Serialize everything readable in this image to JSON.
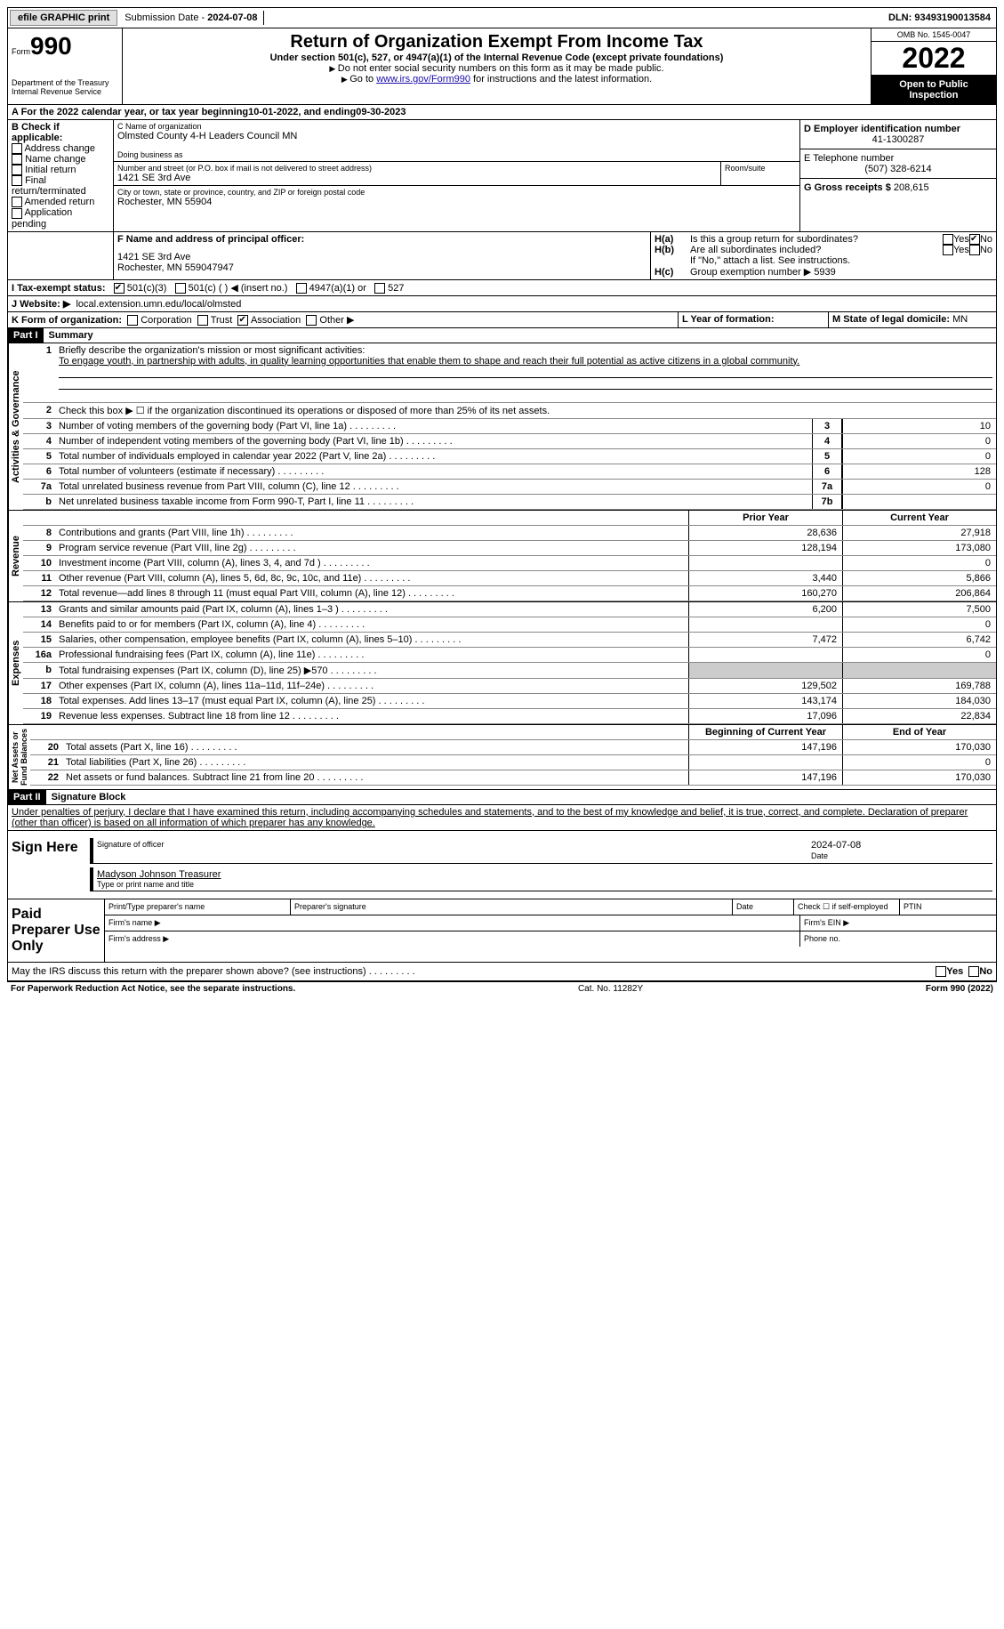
{
  "topbar": {
    "efile": "efile GRAPHIC print",
    "submission_label": "Submission Date - ",
    "submission_date": "2024-07-08",
    "dln_label": "DLN: ",
    "dln": "93493190013584"
  },
  "header": {
    "form_word": "Form",
    "form_num": "990",
    "title": "Return of Organization Exempt From Income Tax",
    "subtitle": "Under section 501(c), 527, or 4947(a)(1) of the Internal Revenue Code (except private foundations)",
    "warn1": "Do not enter social security numbers on this form as it may be made public.",
    "warn2_pre": "Go to ",
    "warn2_link": "www.irs.gov/Form990",
    "warn2_post": " for instructions and the latest information.",
    "dept": "Department of the Treasury",
    "irs": "Internal Revenue Service",
    "omb": "OMB No. 1545-0047",
    "year": "2022",
    "inspection": "Open to Public Inspection"
  },
  "lineA": {
    "text": "A For the 2022 calendar year, or tax year beginning ",
    "begin": "10-01-2022",
    "mid": " , and ending ",
    "end": "09-30-2023"
  },
  "sectionB": {
    "label": "B Check if applicable:",
    "opts": [
      "Address change",
      "Name change",
      "Initial return",
      "Final return/terminated",
      "Amended return",
      "Application pending"
    ]
  },
  "sectionC": {
    "name_label": "C Name of organization",
    "name": "Olmsted County 4-H Leaders Council MN",
    "dba_label": "Doing business as",
    "addr_label": "Number and street (or P.O. box if mail is not delivered to street address)",
    "room_label": "Room/suite",
    "addr": "1421 SE 3rd Ave",
    "city_label": "City or town, state or province, country, and ZIP or foreign postal code",
    "city": "Rochester, MN  55904"
  },
  "sectionD": {
    "label": "D Employer identification number",
    "value": "41-1300287"
  },
  "sectionE": {
    "label": "E Telephone number",
    "value": "(507) 328-6214"
  },
  "sectionG": {
    "label": "G Gross receipts $ ",
    "value": "208,615"
  },
  "sectionF": {
    "label": "F Name and address of principal officer:",
    "addr1": "1421 SE 3rd Ave",
    "addr2": "Rochester, MN  559047947"
  },
  "sectionH": {
    "ha": "Is this a group return for subordinates?",
    "hb": "Are all subordinates included?",
    "hb_note": "If \"No,\" attach a list. See instructions.",
    "hc_label": "Group exemption number ▶",
    "hc_value": "5939"
  },
  "sectionI": {
    "label": "I    Tax-exempt status:",
    "opt1": "501(c)(3)",
    "opt2": "501(c) (  ) ◀ (insert no.)",
    "opt3": "4947(a)(1) or",
    "opt4": "527"
  },
  "sectionJ": {
    "label": "J    Website: ▶",
    "value": "local.extension.umn.edu/local/olmsted"
  },
  "sectionK": {
    "label": "K Form of organization:",
    "opts": [
      "Corporation",
      "Trust",
      "Association",
      "Other ▶"
    ]
  },
  "sectionL": {
    "label": "L Year of formation:"
  },
  "sectionM": {
    "label": "M State of legal domicile: ",
    "value": "MN"
  },
  "part1": {
    "header": "Part I",
    "title": "Summary",
    "q1_label": "Briefly describe the organization's mission or most significant activities:",
    "q1_text": "To engage youth, in partnership with adults, in quality learning opportunities that enable them to shape and reach their full potential as active citizens in a global community.",
    "q2": "Check this box ▶ ☐ if the organization discontinued its operations or disposed of more than 25% of its net assets.",
    "lines_gov": [
      {
        "n": "3",
        "d": "Number of voting members of the governing body (Part VI, line 1a)",
        "b": "3",
        "v": "10"
      },
      {
        "n": "4",
        "d": "Number of independent voting members of the governing body (Part VI, line 1b)",
        "b": "4",
        "v": "0"
      },
      {
        "n": "5",
        "d": "Total number of individuals employed in calendar year 2022 (Part V, line 2a)",
        "b": "5",
        "v": "0"
      },
      {
        "n": "6",
        "d": "Total number of volunteers (estimate if necessary)",
        "b": "6",
        "v": "128"
      },
      {
        "n": "7a",
        "d": "Total unrelated business revenue from Part VIII, column (C), line 12",
        "b": "7a",
        "v": "0"
      },
      {
        "n": "b",
        "d": "Net unrelated business taxable income from Form 990-T, Part I, line 11",
        "b": "7b",
        "v": ""
      }
    ],
    "col_prior": "Prior Year",
    "col_current": "Current Year",
    "revenue": [
      {
        "n": "8",
        "d": "Contributions and grants (Part VIII, line 1h)",
        "p": "28,636",
        "c": "27,918"
      },
      {
        "n": "9",
        "d": "Program service revenue (Part VIII, line 2g)",
        "p": "128,194",
        "c": "173,080"
      },
      {
        "n": "10",
        "d": "Investment income (Part VIII, column (A), lines 3, 4, and 7d )",
        "p": "",
        "c": "0"
      },
      {
        "n": "11",
        "d": "Other revenue (Part VIII, column (A), lines 5, 6d, 8c, 9c, 10c, and 11e)",
        "p": "3,440",
        "c": "5,866"
      },
      {
        "n": "12",
        "d": "Total revenue—add lines 8 through 11 (must equal Part VIII, column (A), line 12)",
        "p": "160,270",
        "c": "206,864"
      }
    ],
    "expenses": [
      {
        "n": "13",
        "d": "Grants and similar amounts paid (Part IX, column (A), lines 1–3 )",
        "p": "6,200",
        "c": "7,500"
      },
      {
        "n": "14",
        "d": "Benefits paid to or for members (Part IX, column (A), line 4)",
        "p": "",
        "c": "0"
      },
      {
        "n": "15",
        "d": "Salaries, other compensation, employee benefits (Part IX, column (A), lines 5–10)",
        "p": "7,472",
        "c": "6,742"
      },
      {
        "n": "16a",
        "d": "Professional fundraising fees (Part IX, column (A), line 11e)",
        "p": "",
        "c": "0"
      },
      {
        "n": "b",
        "d": "Total fundraising expenses (Part IX, column (D), line 25) ▶570",
        "p": "shaded",
        "c": "shaded"
      },
      {
        "n": "17",
        "d": "Other expenses (Part IX, column (A), lines 11a–11d, 11f–24e)",
        "p": "129,502",
        "c": "169,788"
      },
      {
        "n": "18",
        "d": "Total expenses. Add lines 13–17 (must equal Part IX, column (A), line 25)",
        "p": "143,174",
        "c": "184,030"
      },
      {
        "n": "19",
        "d": "Revenue less expenses. Subtract line 18 from line 12",
        "p": "17,096",
        "c": "22,834"
      }
    ],
    "col_begin": "Beginning of Current Year",
    "col_end": "End of Year",
    "netassets": [
      {
        "n": "20",
        "d": "Total assets (Part X, line 16)",
        "p": "147,196",
        "c": "170,030"
      },
      {
        "n": "21",
        "d": "Total liabilities (Part X, line 26)",
        "p": "",
        "c": "0"
      },
      {
        "n": "22",
        "d": "Net assets or fund balances. Subtract line 21 from line 20",
        "p": "147,196",
        "c": "170,030"
      }
    ]
  },
  "part2": {
    "header": "Part II",
    "title": "Signature Block",
    "penalty": "Under penalties of perjury, I declare that I have examined this return, including accompanying schedules and statements, and to the best of my knowledge and belief, it is true, correct, and complete. Declaration of preparer (other than officer) is based on all information of which preparer has any knowledge.",
    "sign_here": "Sign Here",
    "sig_officer": "Signature of officer",
    "sig_date_label": "Date",
    "sig_date": "2024-07-08",
    "sig_name": "Madyson Johnson  Treasurer",
    "sig_name_label": "Type or print name and title",
    "paid": "Paid Preparer Use Only",
    "prep_name": "Print/Type preparer's name",
    "prep_sig": "Preparer's signature",
    "prep_date": "Date",
    "prep_self": "Check ☐ if self-employed",
    "prep_ptin": "PTIN",
    "firm_name": "Firm's name    ▶",
    "firm_ein": "Firm's EIN ▶",
    "firm_addr": "Firm's address ▶",
    "firm_phone": "Phone no.",
    "discuss": "May the IRS discuss this return with the preparer shown above? (see instructions)"
  },
  "footer": {
    "left": "For Paperwork Reduction Act Notice, see the separate instructions.",
    "mid": "Cat. No. 11282Y",
    "right": "Form 990 (2022)"
  },
  "labels": {
    "yes": "Yes",
    "no": "No",
    "ha": "H(a)",
    "hb": "H(b)",
    "hc": "H(c)"
  }
}
